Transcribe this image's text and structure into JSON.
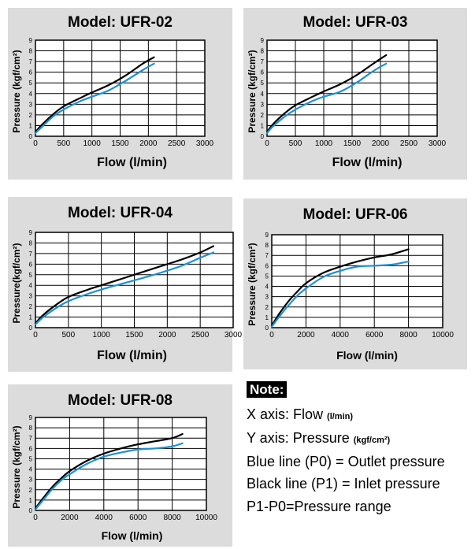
{
  "chart_data": [
    {
      "type": "line",
      "title": "Model: UFR-02",
      "xlabel": "Flow (l/min)",
      "ylabel": "Pressure (kgf/cm²)",
      "xlim": [
        0,
        3000
      ],
      "ylim": [
        0,
        9
      ],
      "xticks": [
        "0",
        "500",
        "1000",
        "1500",
        "2000",
        "2500",
        "3000"
      ],
      "yticks": [
        "0",
        "1",
        "2",
        "3",
        "4",
        "5",
        "6",
        "7",
        "8",
        "9"
      ],
      "grid": true,
      "series": [
        {
          "color": "#000000",
          "x": [
            0,
            100,
            300,
            500,
            800,
            1000,
            1300,
            1600,
            1900,
            2100
          ],
          "y": [
            0.4,
            1.0,
            2.0,
            2.8,
            3.6,
            4.1,
            4.8,
            5.7,
            6.8,
            7.4
          ]
        },
        {
          "color": "#1e90d6",
          "x": [
            0,
            100,
            300,
            500,
            800,
            1000,
            1300,
            1600,
            1900,
            2100
          ],
          "y": [
            0.3,
            0.8,
            1.8,
            2.5,
            3.3,
            3.7,
            4.3,
            5.2,
            6.2,
            6.8
          ]
        }
      ]
    },
    {
      "type": "line",
      "title": "Model: UFR-03",
      "xlabel": "Flow (l/min)",
      "ylabel": "Pressure (kgf/cm²)",
      "xlim": [
        0,
        3000
      ],
      "ylim": [
        0,
        9
      ],
      "xticks": [
        "0",
        "500",
        "1000",
        "1500",
        "2000",
        "2500",
        "3000"
      ],
      "yticks": [
        "0",
        "1",
        "2",
        "3",
        "4",
        "5",
        "6",
        "7",
        "8",
        "9"
      ],
      "grid": true,
      "series": [
        {
          "color": "#000000",
          "x": [
            0,
            100,
            300,
            500,
            800,
            1000,
            1300,
            1600,
            1900,
            2100
          ],
          "y": [
            0.4,
            1.1,
            2.1,
            2.9,
            3.7,
            4.2,
            4.9,
            5.8,
            6.9,
            7.6
          ]
        },
        {
          "color": "#1e90d6",
          "x": [
            0,
            100,
            300,
            500,
            800,
            1000,
            1300,
            1600,
            1900,
            2100
          ],
          "y": [
            0.3,
            0.9,
            1.8,
            2.5,
            3.3,
            3.7,
            4.2,
            5.1,
            6.2,
            6.8
          ]
        }
      ]
    },
    {
      "type": "line",
      "title": "Model: UFR-04",
      "xlabel": "Flow (l/min)",
      "ylabel": "Pressure(kgf/cm²)",
      "xlim": [
        0,
        3000
      ],
      "ylim": [
        0,
        9
      ],
      "xticks": [
        "0",
        "500",
        "1000",
        "1500",
        "2000",
        "2500",
        "3000"
      ],
      "yticks": [
        "0",
        "1",
        "2",
        "3",
        "4",
        "5",
        "6",
        "7",
        "8",
        "9"
      ],
      "grid": true,
      "series": [
        {
          "color": "#000000",
          "x": [
            0,
            100,
            300,
            500,
            800,
            1000,
            1400,
            1800,
            2200,
            2500,
            2700
          ],
          "y": [
            0.4,
            1.1,
            2.1,
            2.9,
            3.6,
            4.0,
            4.8,
            5.6,
            6.4,
            7.1,
            7.7
          ]
        },
        {
          "color": "#1e90d6",
          "x": [
            0,
            100,
            300,
            500,
            800,
            1000,
            1400,
            1800,
            2200,
            2500,
            2700
          ],
          "y": [
            0.3,
            0.9,
            1.8,
            2.5,
            3.2,
            3.6,
            4.3,
            5.0,
            5.8,
            6.6,
            7.1
          ]
        }
      ]
    },
    {
      "type": "line",
      "title": "Model: UFR-06",
      "xlabel": "Flow (l/min)",
      "ylabel": "Pressure (kgf/cm²)",
      "xlim": [
        0,
        10000
      ],
      "ylim": [
        0,
        9
      ],
      "xticks": [
        "0",
        "2000",
        "4000",
        "6000",
        "8000",
        "10000"
      ],
      "yticks": [
        "0",
        "1",
        "2",
        "3",
        "4",
        "5",
        "6",
        "7",
        "8",
        "9"
      ],
      "grid": true,
      "series": [
        {
          "color": "#000000",
          "x": [
            0,
            500,
            1000,
            1500,
            2000,
            3000,
            4000,
            5000,
            6000,
            7000,
            8000
          ],
          "y": [
            0.2,
            1.5,
            2.6,
            3.5,
            4.3,
            5.3,
            5.9,
            6.4,
            6.8,
            7.1,
            7.6
          ]
        },
        {
          "color": "#1e90d6",
          "x": [
            0,
            500,
            1000,
            1500,
            2000,
            3000,
            4000,
            5000,
            6000,
            7000,
            8000
          ],
          "y": [
            0.1,
            1.2,
            2.2,
            3.1,
            3.8,
            4.9,
            5.5,
            5.9,
            6.0,
            6.1,
            6.4
          ]
        }
      ]
    },
    {
      "type": "line",
      "title": "Model: UFR-08",
      "xlabel": "Flow (l/min)",
      "ylabel": "Pressure (kgf/cm²)",
      "xlim": [
        0,
        10000
      ],
      "ylim": [
        0,
        9
      ],
      "xticks": [
        "0",
        "2000",
        "4000",
        "6000",
        "8000",
        "10000"
      ],
      "yticks": [
        "0",
        "1",
        "2",
        "3",
        "4",
        "5",
        "6",
        "7",
        "8",
        "9"
      ],
      "grid": true,
      "series": [
        {
          "color": "#000000",
          "x": [
            0,
            500,
            1000,
            1500,
            2000,
            3000,
            4000,
            5000,
            6000,
            7000,
            8000,
            8600
          ],
          "y": [
            0.2,
            1.3,
            2.3,
            3.1,
            3.8,
            4.8,
            5.5,
            6.0,
            6.4,
            6.7,
            7.0,
            7.4
          ]
        },
        {
          "color": "#1e90d6",
          "x": [
            0,
            500,
            1000,
            1500,
            2000,
            3000,
            4000,
            5000,
            6000,
            7000,
            8000,
            8600
          ],
          "y": [
            0.1,
            1.1,
            2.1,
            2.9,
            3.5,
            4.5,
            5.2,
            5.6,
            5.9,
            6.0,
            6.2,
            6.5
          ]
        }
      ]
    }
  ],
  "note": {
    "badge": "Note:",
    "x_axis_label": "X axis: Flow ",
    "x_axis_unit": "(l/min)",
    "y_axis_label": "Y axis: Pressure ",
    "y_axis_unit": "(kgf/cm²)",
    "blue_line": "Blue line (P0) = Outlet pressure",
    "black_line": "Black line (P1) = Inlet pressure",
    "range": "P1-P0=Pressure range"
  }
}
